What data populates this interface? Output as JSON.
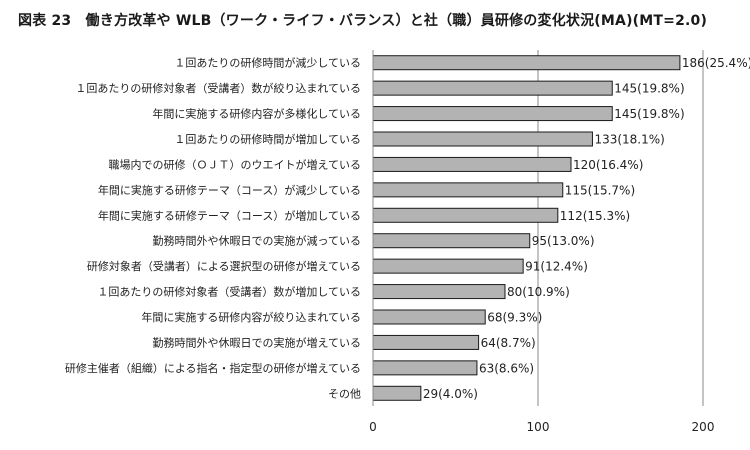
{
  "chart_data": {
    "type": "bar",
    "orientation": "horizontal",
    "title": "図表 23　働き方改革や WLB（ワーク・ライフ・バランス）と社（職）員研修の変化状況(MA)(MT=2.0)",
    "categories": [
      "１回あたりの研修時間が減少している",
      "１回あたりの研修対象者（受講者）数が絞り込まれている",
      "年間に実施する研修内容が多様化している",
      "１回あたりの研修時間が増加している",
      "職場内での研修（ＯＪＴ）のウエイトが増えている",
      "年間に実施する研修テーマ（コース）が減少している",
      "年間に実施する研修テーマ（コース）が増加している",
      "勤務時間外や休暇日での実施が減っている",
      "研修対象者（受講者）による選択型の研修が増えている",
      "１回あたりの研修対象者（受講者）数が増加している",
      "年間に実施する研修内容が絞り込まれている",
      "勤務時間外や休暇日での実施が増えている",
      "研修主催者（組織）による指名・指定型の研修が増えている",
      "その他"
    ],
    "values": [
      186,
      145,
      145,
      133,
      120,
      115,
      112,
      95,
      91,
      80,
      68,
      64,
      63,
      29
    ],
    "data_labels": [
      "186(25.4%)",
      "145(19.8%)",
      "145(19.8%)",
      "133(18.1%)",
      "120(16.4%)",
      "115(15.7%)",
      "112(15.3%)",
      "95(13.0%)",
      "91(12.4%)",
      "80(10.9%)",
      "68(9.3%)",
      "64(8.7%)",
      "63(8.6%)",
      "29(4.0%)"
    ],
    "xlim": [
      0,
      200
    ],
    "xticks": [
      0,
      100,
      200
    ],
    "xtick_labels": [
      "0",
      "100",
      "200"
    ],
    "xlabel": "",
    "ylabel": "",
    "gridlines": "vertical",
    "legend": "none",
    "colors": {
      "bar_fill": "#b3b3b3",
      "bar_stroke": "#1a1a1a",
      "grid": "#8a8a8a",
      "axis": "#8a8a8a"
    }
  }
}
